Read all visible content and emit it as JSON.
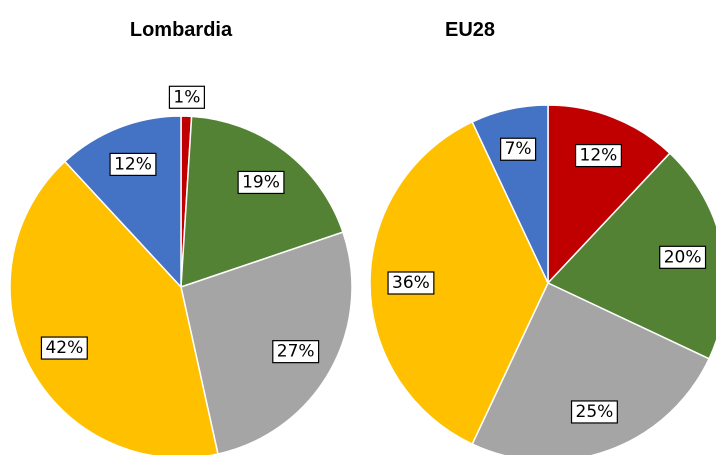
{
  "chart_data": [
    {
      "type": "pie",
      "title": "Lombardia",
      "values": [
        1,
        19,
        27,
        42,
        12
      ],
      "value_labels": [
        "1%",
        "19%",
        "27%",
        "42%",
        "12%"
      ],
      "colors": [
        "#c00000",
        "#548235",
        "#a5a5a5",
        "#ffc000",
        "#4472c4"
      ]
    },
    {
      "type": "pie",
      "title": "EU28",
      "values": [
        12,
        20,
        25,
        36,
        7
      ],
      "value_labels": [
        "12%",
        "20%",
        "25%",
        "36%",
        "7%"
      ],
      "colors": [
        "#c00000",
        "#548235",
        "#a5a5a5",
        "#ffc000",
        "#4472c4"
      ]
    }
  ]
}
